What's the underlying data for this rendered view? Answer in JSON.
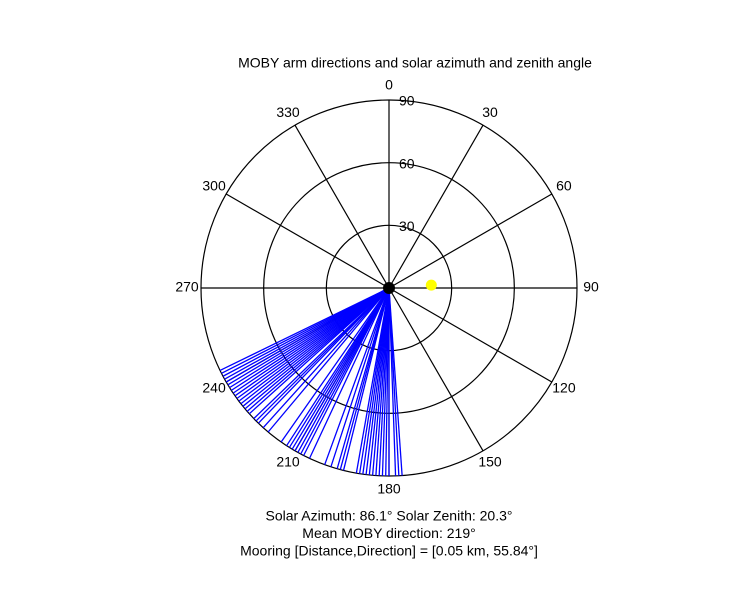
{
  "chart_data": {
    "type": "polar",
    "title": "MOBY arm directions and solar azimuth and zenith angle",
    "rlim": [
      0,
      90
    ],
    "rticks": [
      30,
      60,
      90
    ],
    "thetaticks": [
      0,
      30,
      60,
      90,
      120,
      150,
      180,
      210,
      240,
      270,
      300,
      330
    ],
    "series": [
      {
        "color": "#0000ff",
        "theta": [
          176,
          177,
          178,
          180,
          181,
          182,
          183,
          184,
          185,
          186,
          187,
          188,
          189,
          190,
          194,
          195,
          196,
          198,
          200,
          205,
          207,
          208,
          209,
          210,
          211,
          212,
          213,
          215,
          220,
          222,
          224,
          225,
          226,
          228,
          229,
          230,
          231,
          232,
          233,
          234,
          235,
          236,
          237,
          238,
          239,
          240,
          241,
          242,
          243,
          244
        ]
      }
    ],
    "sun": {
      "theta": 86.1,
      "r": 20.3,
      "color": "#ffff00"
    },
    "annotations": [
      "Solar Azimuth: 86.1°   Solar Zenith: 20.3°",
      "Mean MOBY direction: 219°",
      "Mooring [Distance,Direction] = [0.05 km, 55.84°]"
    ]
  }
}
